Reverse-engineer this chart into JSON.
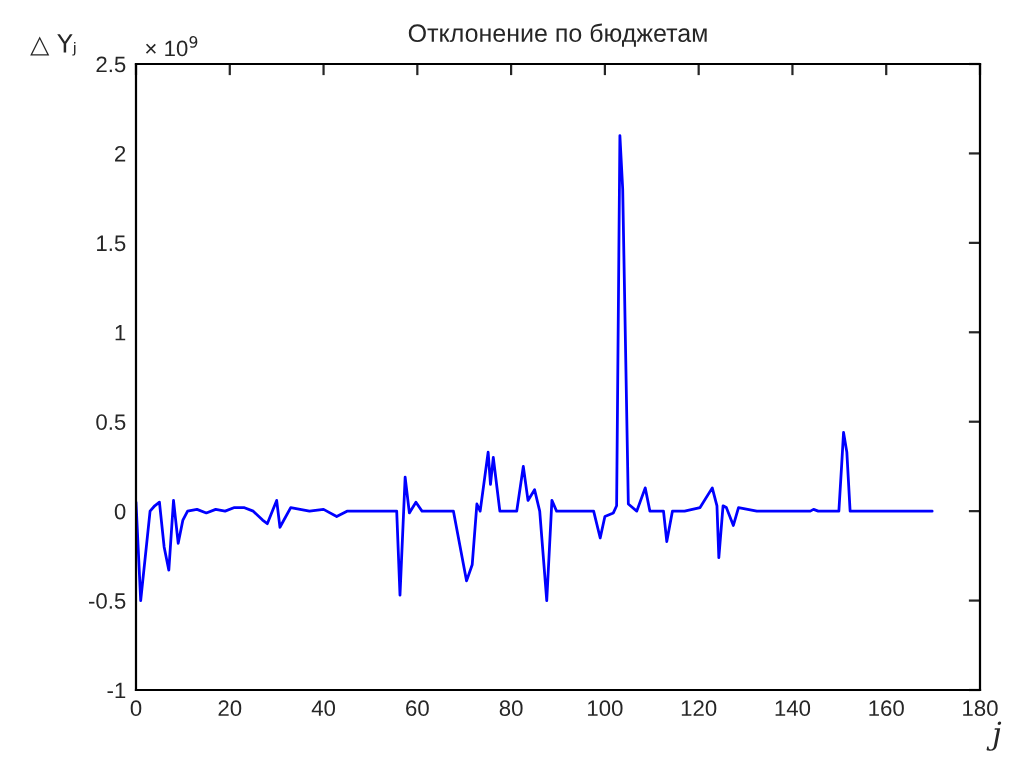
{
  "chart_data": {
    "type": "line",
    "title": "Отклонение по бюджетам",
    "xlabel": "j",
    "ylabel": "△ Yⱼ",
    "annotations": [
      "× 10$^{9}$"
    ],
    "x": [
      0,
      1,
      2,
      3,
      4,
      5,
      6,
      7,
      8,
      9,
      10,
      11,
      13,
      15,
      17,
      19,
      21,
      23,
      25,
      27,
      28,
      30,
      30.7,
      33,
      37,
      40,
      42.8,
      45,
      50,
      54,
      55.6,
      56.3,
      57.4,
      58.3,
      59.7,
      61,
      65,
      67.7,
      70.5,
      71.7,
      72.7,
      73.4,
      75.1,
      75.6,
      76.2,
      77.6,
      81.2,
      82.6,
      83.6,
      85,
      86.1,
      87.6,
      88.7,
      89.7,
      95,
      97.6,
      99,
      100,
      101.8,
      102.5,
      103.2,
      103.8,
      105,
      106.8,
      108.6,
      109.6,
      112.5,
      113.2,
      114.4,
      117,
      120.3,
      122.9,
      123.9,
      124.3,
      125.2,
      125.9,
      127.4,
      128.5,
      132.4,
      138,
      143.8,
      144.5,
      145.5,
      149.9,
      150.5,
      150.9,
      151.6,
      152.3,
      160,
      169.8
    ],
    "series": [
      {
        "color": "#0000ff",
        "values": [
          0.05,
          -0.5,
          -0.25,
          0.0,
          0.03,
          0.05,
          -0.2,
          -0.33,
          0.06,
          -0.18,
          -0.05,
          0.0,
          0.01,
          -0.01,
          0.01,
          0.0,
          0.02,
          0.02,
          0.0,
          -0.05,
          -0.07,
          0.06,
          -0.09,
          0.02,
          0.0,
          0.01,
          -0.03,
          0.0,
          0.0,
          0.0,
          0.0,
          -0.47,
          0.19,
          -0.01,
          0.05,
          0.0,
          0.0,
          0.0,
          -0.39,
          -0.3,
          0.04,
          0.0,
          0.33,
          0.15,
          0.3,
          0.0,
          0.0,
          0.25,
          0.06,
          0.12,
          0.0,
          -0.5,
          0.06,
          0.0,
          0.0,
          0.0,
          -0.15,
          -0.03,
          -0.01,
          0.03,
          2.1,
          1.8,
          0.04,
          0.0,
          0.13,
          0.0,
          0.0,
          -0.17,
          0.0,
          0.0,
          0.02,
          0.13,
          0.03,
          -0.26,
          0.03,
          0.02,
          -0.08,
          0.02,
          0.0,
          0.0,
          0.0,
          0.01,
          0.0,
          0.0,
          0.26,
          0.44,
          0.33,
          0.0,
          0.0,
          0.0
        ]
      }
    ],
    "xlim": [
      0,
      180
    ],
    "xticks": [
      0,
      20,
      40,
      60,
      80,
      100,
      120,
      140,
      160,
      180
    ],
    "ylim": [
      -1,
      2.5
    ],
    "yticks": [
      -1,
      -0.5,
      0,
      0.5,
      1,
      1.5,
      2,
      2.5
    ],
    "grid": false,
    "legend": false,
    "marker": "none",
    "line_style": "solid"
  }
}
